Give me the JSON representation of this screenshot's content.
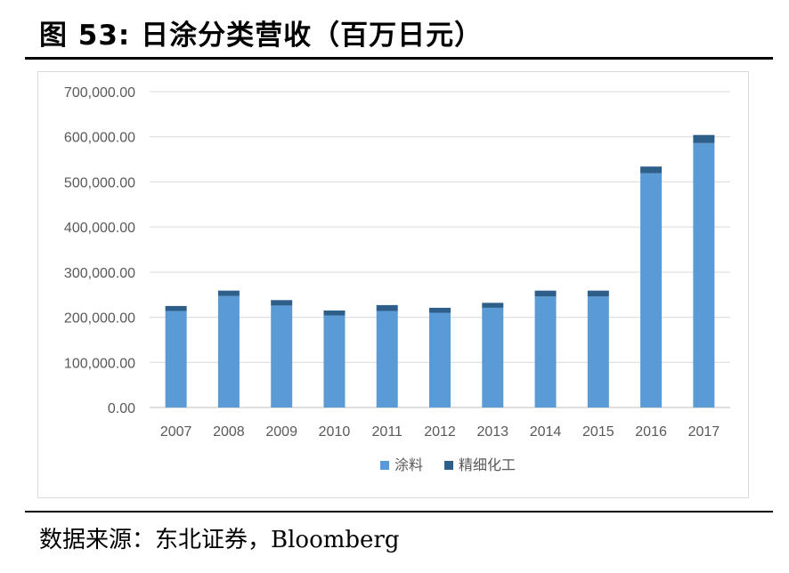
{
  "figure": {
    "title": "图 53: 日涂分类营收（百万日元）",
    "source": "数据来源：东北证券，Bloomberg"
  },
  "chart_data": {
    "type": "bar",
    "stacked": true,
    "categories": [
      "2007",
      "2008",
      "2009",
      "2010",
      "2011",
      "2012",
      "2013",
      "2014",
      "2015",
      "2016",
      "2017"
    ],
    "series": [
      {
        "name": "涂料",
        "color": "#5b9bd5",
        "values": [
          214000,
          247000,
          226000,
          204000,
          214000,
          210000,
          221000,
          246000,
          246000,
          519000,
          586000
        ]
      },
      {
        "name": "精细化工",
        "color": "#2e5f8a",
        "values": [
          11000,
          12000,
          12000,
          11000,
          13000,
          11000,
          11000,
          13000,
          13000,
          15000,
          18000
        ]
      }
    ],
    "yticks": [
      "0.00",
      "100,000.00",
      "200,000.00",
      "300,000.00",
      "400,000.00",
      "500,000.00",
      "600,000.00",
      "700,000.00"
    ],
    "ylim": [
      0,
      700000
    ],
    "grid": true,
    "legend_position": "bottom"
  }
}
